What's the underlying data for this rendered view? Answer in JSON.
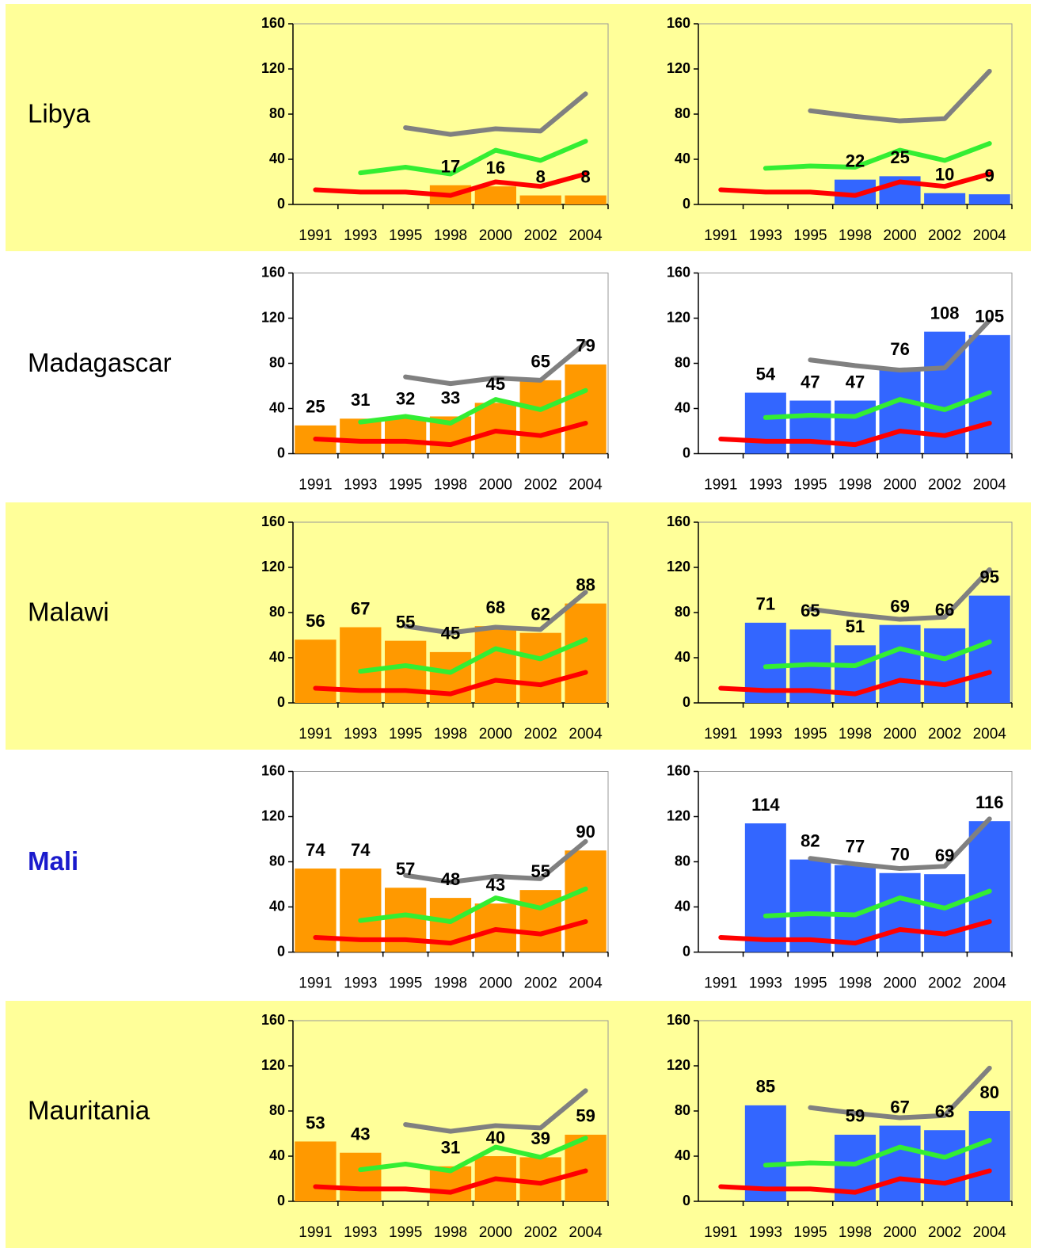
{
  "row_labels": [
    {
      "text": "Libya",
      "color": "#000000",
      "bold": false
    },
    {
      "text": "Madagascar",
      "color": "#000000",
      "bold": false
    },
    {
      "text": "Malawi",
      "color": "#000000",
      "bold": false
    },
    {
      "text": "Mali",
      "color": "#1a1acc",
      "bold": true
    },
    {
      "text": "Mauritania",
      "color": "#000000",
      "bold": false
    }
  ],
  "row_backgrounds": [
    "#ffff99",
    "#ffffff",
    "#ffff99",
    "#ffffff",
    "#ffff99"
  ],
  "chart_data": [
    {
      "type": "bar",
      "categories": [
        "1991",
        "1993",
        "1995",
        "1998",
        "2000",
        "2002",
        "2004"
      ],
      "ylim": [
        0,
        160
      ],
      "yticks": [
        0,
        40,
        80,
        120,
        160
      ],
      "series": [
        {
          "type": "bar",
          "color": "#ff9900",
          "values": [
            null,
            null,
            null,
            17,
            16,
            8,
            8
          ]
        },
        {
          "type": "line",
          "color": "#808080",
          "values": [
            null,
            null,
            68,
            62,
            67,
            65,
            98
          ]
        },
        {
          "type": "line",
          "color": "#33ee33",
          "values": [
            null,
            28,
            33,
            27,
            48,
            39,
            56
          ]
        },
        {
          "type": "line",
          "color": "#ff0000",
          "values": [
            13,
            11,
            11,
            8,
            20,
            16,
            27
          ]
        }
      ]
    },
    {
      "type": "bar",
      "categories": [
        "1991",
        "1993",
        "1995",
        "1998",
        "2000",
        "2002",
        "2004"
      ],
      "ylim": [
        0,
        160
      ],
      "yticks": [
        0,
        40,
        80,
        120,
        160
      ],
      "series": [
        {
          "type": "bar",
          "color": "#3366ff",
          "values": [
            null,
            null,
            null,
            22,
            25,
            10,
            9
          ]
        },
        {
          "type": "line",
          "color": "#808080",
          "values": [
            null,
            null,
            83,
            78,
            74,
            76,
            118
          ]
        },
        {
          "type": "line",
          "color": "#33ee33",
          "values": [
            null,
            32,
            34,
            33,
            48,
            39,
            54
          ]
        },
        {
          "type": "line",
          "color": "#ff0000",
          "values": [
            13,
            11,
            11,
            8,
            20,
            16,
            27
          ]
        }
      ]
    },
    {
      "type": "bar",
      "categories": [
        "1991",
        "1993",
        "1995",
        "1998",
        "2000",
        "2002",
        "2004"
      ],
      "ylim": [
        0,
        160
      ],
      "yticks": [
        0,
        40,
        80,
        120,
        160
      ],
      "series": [
        {
          "type": "bar",
          "color": "#ff9900",
          "values": [
            25,
            31,
            32,
            33,
            45,
            65,
            79
          ]
        },
        {
          "type": "line",
          "color": "#808080",
          "values": [
            null,
            null,
            68,
            62,
            67,
            65,
            98
          ]
        },
        {
          "type": "line",
          "color": "#33ee33",
          "values": [
            null,
            28,
            33,
            27,
            48,
            39,
            56
          ]
        },
        {
          "type": "line",
          "color": "#ff0000",
          "values": [
            13,
            11,
            11,
            8,
            20,
            16,
            27
          ]
        }
      ]
    },
    {
      "type": "bar",
      "categories": [
        "1991",
        "1993",
        "1995",
        "1998",
        "2000",
        "2002",
        "2004"
      ],
      "ylim": [
        0,
        160
      ],
      "yticks": [
        0,
        40,
        80,
        120,
        160
      ],
      "series": [
        {
          "type": "bar",
          "color": "#3366ff",
          "values": [
            null,
            54,
            47,
            47,
            76,
            108,
            105
          ]
        },
        {
          "type": "line",
          "color": "#808080",
          "values": [
            null,
            null,
            83,
            78,
            74,
            76,
            118
          ]
        },
        {
          "type": "line",
          "color": "#33ee33",
          "values": [
            null,
            32,
            34,
            33,
            48,
            39,
            54
          ]
        },
        {
          "type": "line",
          "color": "#ff0000",
          "values": [
            13,
            11,
            11,
            8,
            20,
            16,
            27
          ]
        }
      ]
    },
    {
      "type": "bar",
      "categories": [
        "1991",
        "1993",
        "1995",
        "1998",
        "2000",
        "2002",
        "2004"
      ],
      "ylim": [
        0,
        160
      ],
      "yticks": [
        0,
        40,
        80,
        120,
        160
      ],
      "series": [
        {
          "type": "bar",
          "color": "#ff9900",
          "values": [
            56,
            67,
            55,
            45,
            68,
            62,
            88
          ]
        },
        {
          "type": "line",
          "color": "#808080",
          "values": [
            null,
            null,
            68,
            62,
            67,
            65,
            98
          ]
        },
        {
          "type": "line",
          "color": "#33ee33",
          "values": [
            null,
            28,
            33,
            27,
            48,
            39,
            56
          ]
        },
        {
          "type": "line",
          "color": "#ff0000",
          "values": [
            13,
            11,
            11,
            8,
            20,
            16,
            27
          ]
        }
      ]
    },
    {
      "type": "bar",
      "categories": [
        "1991",
        "1993",
        "1995",
        "1998",
        "2000",
        "2002",
        "2004"
      ],
      "ylim": [
        0,
        160
      ],
      "yticks": [
        0,
        40,
        80,
        120,
        160
      ],
      "series": [
        {
          "type": "bar",
          "color": "#3366ff",
          "values": [
            null,
            71,
            65,
            51,
            69,
            66,
            95
          ]
        },
        {
          "type": "line",
          "color": "#808080",
          "values": [
            null,
            null,
            83,
            78,
            74,
            76,
            118
          ]
        },
        {
          "type": "line",
          "color": "#33ee33",
          "values": [
            null,
            32,
            34,
            33,
            48,
            39,
            54
          ]
        },
        {
          "type": "line",
          "color": "#ff0000",
          "values": [
            13,
            11,
            11,
            8,
            20,
            16,
            27
          ]
        }
      ]
    },
    {
      "type": "bar",
      "categories": [
        "1991",
        "1993",
        "1995",
        "1998",
        "2000",
        "2002",
        "2004"
      ],
      "ylim": [
        0,
        160
      ],
      "yticks": [
        0,
        40,
        80,
        120,
        160
      ],
      "series": [
        {
          "type": "bar",
          "color": "#ff9900",
          "values": [
            74,
            74,
            57,
            48,
            43,
            55,
            90
          ]
        },
        {
          "type": "line",
          "color": "#808080",
          "values": [
            null,
            null,
            68,
            62,
            67,
            65,
            98
          ]
        },
        {
          "type": "line",
          "color": "#33ee33",
          "values": [
            null,
            28,
            33,
            27,
            48,
            39,
            56
          ]
        },
        {
          "type": "line",
          "color": "#ff0000",
          "values": [
            13,
            11,
            11,
            8,
            20,
            16,
            27
          ]
        }
      ]
    },
    {
      "type": "bar",
      "categories": [
        "1991",
        "1993",
        "1995",
        "1998",
        "2000",
        "2002",
        "2004"
      ],
      "ylim": [
        0,
        160
      ],
      "yticks": [
        0,
        40,
        80,
        120,
        160
      ],
      "series": [
        {
          "type": "bar",
          "color": "#3366ff",
          "values": [
            null,
            114,
            82,
            77,
            70,
            69,
            116
          ]
        },
        {
          "type": "line",
          "color": "#808080",
          "values": [
            null,
            null,
            83,
            78,
            74,
            76,
            118
          ]
        },
        {
          "type": "line",
          "color": "#33ee33",
          "values": [
            null,
            32,
            34,
            33,
            48,
            39,
            54
          ]
        },
        {
          "type": "line",
          "color": "#ff0000",
          "values": [
            13,
            11,
            11,
            8,
            20,
            16,
            27
          ]
        }
      ]
    },
    {
      "type": "bar",
      "categories": [
        "1991",
        "1993",
        "1995",
        "1998",
        "2000",
        "2002",
        "2004"
      ],
      "ylim": [
        0,
        160
      ],
      "yticks": [
        0,
        40,
        80,
        120,
        160
      ],
      "series": [
        {
          "type": "bar",
          "color": "#ff9900",
          "values": [
            53,
            43,
            null,
            31,
            40,
            39,
            59
          ]
        },
        {
          "type": "line",
          "color": "#808080",
          "values": [
            null,
            null,
            68,
            62,
            67,
            65,
            98
          ]
        },
        {
          "type": "line",
          "color": "#33ee33",
          "values": [
            null,
            28,
            33,
            27,
            48,
            39,
            56
          ]
        },
        {
          "type": "line",
          "color": "#ff0000",
          "values": [
            13,
            11,
            11,
            8,
            20,
            16,
            27
          ]
        }
      ]
    },
    {
      "type": "bar",
      "categories": [
        "1991",
        "1993",
        "1995",
        "1998",
        "2000",
        "2002",
        "2004"
      ],
      "ylim": [
        0,
        160
      ],
      "yticks": [
        0,
        40,
        80,
        120,
        160
      ],
      "series": [
        {
          "type": "bar",
          "color": "#3366ff",
          "values": [
            null,
            85,
            null,
            59,
            67,
            63,
            80
          ]
        },
        {
          "type": "line",
          "color": "#808080",
          "values": [
            null,
            null,
            83,
            78,
            74,
            76,
            118
          ]
        },
        {
          "type": "line",
          "color": "#33ee33",
          "values": [
            null,
            32,
            34,
            33,
            48,
            39,
            54
          ]
        },
        {
          "type": "line",
          "color": "#ff0000",
          "values": [
            13,
            11,
            11,
            8,
            20,
            16,
            27
          ]
        }
      ]
    }
  ]
}
